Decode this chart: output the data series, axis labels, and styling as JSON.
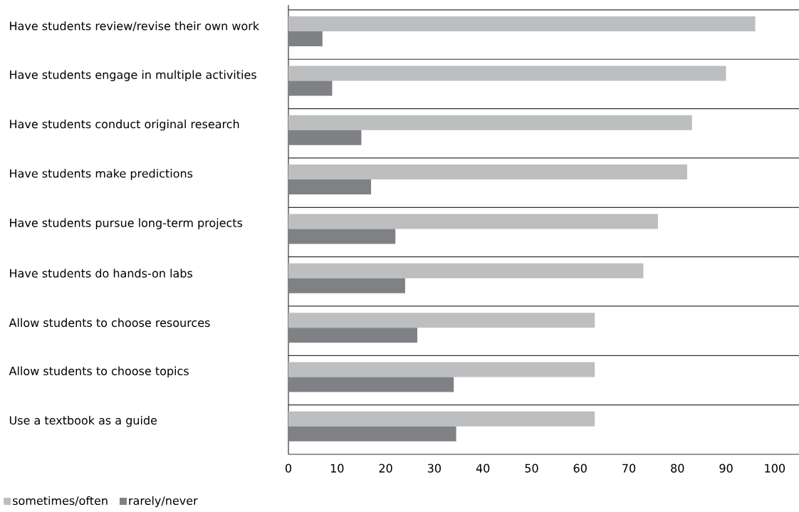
{
  "chart_data": {
    "type": "bar",
    "orientation": "horizontal",
    "categories": [
      "Have students review/revise their own work",
      "Have students engage in multiple activities",
      "Have students conduct original research",
      "Have students make predictions",
      "Have students pursue long-term projects",
      "Have students do hands-on labs",
      "Allow students to choose resources",
      "Allow students to choose topics",
      "Use a textbook as a guide"
    ],
    "series": [
      {
        "name": "sometimes/often",
        "color": "#bdbec0",
        "values": [
          96,
          90,
          83,
          82,
          76,
          73,
          63,
          63,
          63
        ]
      },
      {
        "name": "rarely/never",
        "color": "#808184",
        "values": [
          7,
          9,
          15,
          17,
          22,
          24,
          26.5,
          34,
          34.5
        ]
      }
    ],
    "xlim": [
      0,
      105
    ],
    "xticks": [
      0,
      10,
      20,
      30,
      40,
      50,
      60,
      70,
      80,
      90,
      100
    ],
    "grid": "y",
    "legend": "bottom left"
  }
}
